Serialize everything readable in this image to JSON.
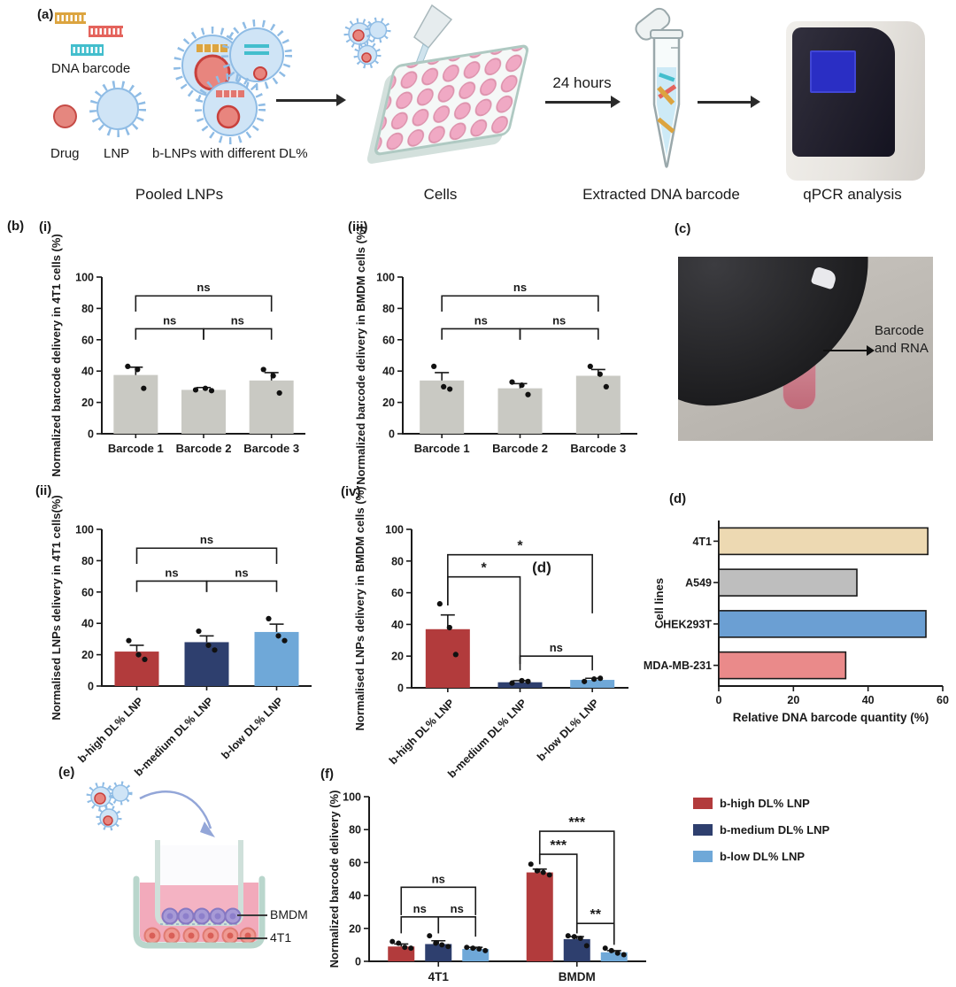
{
  "panels": {
    "a": "(a)",
    "b": "(b)",
    "b_i": "(i)",
    "b_ii": "(ii)",
    "b_iii": "(iii)",
    "b_iv": "(iv)",
    "c": "(c)",
    "d": "(d)",
    "e": "(e)",
    "f": "(f)"
  },
  "panel_a": {
    "dna_barcode_label": "DNA barcode",
    "drug_label": "Drug",
    "lnp_label": "LNP",
    "blnp_label": "b-LNPs with different DL%",
    "pooled_label": "Pooled LNPs",
    "cells_label": "Cells",
    "hours_label": "24 hours",
    "extracted_label": "Extracted DNA barcode",
    "qpcr_label": "qPCR analysis",
    "colors": {
      "barcode_gold": "#dca43f",
      "barcode_red": "#e4635c",
      "barcode_teal": "#43becd",
      "lnp_fill": "#cfe4f6",
      "lnp_stroke": "#8fbce5",
      "drug_fill": "#e5877f",
      "drug_stroke": "#c64b46"
    }
  },
  "panel_c": {
    "annotation_line1": "Barcode",
    "annotation_line2": "and RNA"
  },
  "panel_e": {
    "bmdm_label": "BMDM",
    "t4t1_label": "4T1"
  },
  "chart_data": [
    {
      "id": "b_i",
      "type": "bar",
      "ylabel": "Normalized barcode delivery in 4T1 cells (%)",
      "categories": [
        "Barcode 1",
        "Barcode 2",
        "Barcode 3"
      ],
      "values": [
        37.5,
        28,
        34
      ],
      "errors": [
        5,
        1.5,
        5
      ],
      "points": [
        [
          43,
          41,
          29
        ],
        [
          28,
          29,
          27.5
        ],
        [
          41,
          37,
          26
        ]
      ],
      "bar_color": "#c9c9c3",
      "ylim": [
        0,
        100
      ],
      "yticks": [
        0,
        20,
        40,
        60,
        80,
        100
      ],
      "brackets": [
        {
          "from": 0,
          "to": 2,
          "y": 88,
          "label": "ns",
          "arms": [
            10,
            10
          ]
        },
        {
          "from": 0,
          "to": 1,
          "y": 67,
          "label": "ns",
          "arms": [
            7,
            7
          ]
        },
        {
          "from": 1,
          "to": 2,
          "y": 67,
          "label": "ns",
          "arms": [
            7,
            7
          ]
        }
      ]
    },
    {
      "id": "b_iii",
      "type": "bar",
      "ylabel": "Normalized barcode delivery in BMDM cells (%)",
      "categories": [
        "Barcode 1",
        "Barcode 2",
        "Barcode 3"
      ],
      "values": [
        34,
        29,
        37
      ],
      "errors": [
        5,
        3,
        4
      ],
      "points": [
        [
          43,
          30,
          28.5
        ],
        [
          33,
          31,
          25
        ],
        [
          43,
          38,
          30
        ]
      ],
      "bar_color": "#c9c9c3",
      "ylim": [
        0,
        100
      ],
      "yticks": [
        0,
        20,
        40,
        60,
        80,
        100
      ],
      "brackets": [
        {
          "from": 0,
          "to": 2,
          "y": 88,
          "label": "ns",
          "arms": [
            10,
            10
          ]
        },
        {
          "from": 0,
          "to": 1,
          "y": 67,
          "label": "ns",
          "arms": [
            7,
            7
          ]
        },
        {
          "from": 1,
          "to": 2,
          "y": 67,
          "label": "ns",
          "arms": [
            7,
            7
          ]
        }
      ]
    },
    {
      "id": "b_ii",
      "type": "bar",
      "ylabel": "Normalised LNPs delivery in 4T1 cells(%)",
      "categories": [
        "b-high DL% LNP",
        "b-medium DL% LNP",
        "b-low DL% LNP"
      ],
      "values": [
        22,
        28,
        34.5
      ],
      "errors": [
        4,
        4,
        5
      ],
      "points": [
        [
          29,
          20,
          17
        ],
        [
          35,
          26,
          23
        ],
        [
          43,
          32,
          29
        ]
      ],
      "colors": [
        "#b23b3c",
        "#2e3f6e",
        "#6fa8d8"
      ],
      "ylim": [
        0,
        100
      ],
      "yticks": [
        0,
        20,
        40,
        60,
        80,
        100
      ],
      "brackets": [
        {
          "from": 0,
          "to": 2,
          "y": 88,
          "label": "ns",
          "arms": [
            10,
            10
          ]
        },
        {
          "from": 0,
          "to": 1,
          "y": 67,
          "label": "ns",
          "arms": [
            7,
            7
          ]
        },
        {
          "from": 1,
          "to": 2,
          "y": 67,
          "label": "ns",
          "arms": [
            7,
            7
          ]
        }
      ]
    },
    {
      "id": "b_iv",
      "type": "bar",
      "ylabel": "Normalised LNPs delivery in BMDM cells (%)",
      "categories": [
        "b-high DL% LNP",
        "b-medium DL% LNP",
        "b-low DL% LNP"
      ],
      "values": [
        37,
        3.5,
        5
      ],
      "errors": [
        9,
        1,
        1
      ],
      "points": [
        [
          53,
          38,
          21
        ],
        [
          3,
          4.5,
          4
        ],
        [
          4,
          5.5,
          6
        ]
      ],
      "colors": [
        "#b23b3c",
        "#2e3f6e",
        "#6fa8d8"
      ],
      "ylim": [
        0,
        100
      ],
      "yticks": [
        0,
        20,
        40,
        60,
        80,
        100
      ],
      "brackets": [
        {
          "from": 0,
          "to": 2,
          "y": 84,
          "label": "*",
          "arms": [
            32,
            37
          ]
        },
        {
          "from": 0,
          "to": 1,
          "y": 70,
          "label": "*",
          "arms": [
            18,
            55
          ]
        },
        {
          "from": 1,
          "to": 2,
          "y": 20,
          "label": "ns",
          "arms": [
            9,
            9
          ]
        }
      ],
      "annotation": {
        "text": "(d)",
        "fx": 0.6,
        "y": 73
      }
    },
    {
      "id": "d",
      "type": "hbar",
      "xlabel": "Relative DNA barcode quantity (%)",
      "ylabel": "Cell lines",
      "categories": [
        "4T1",
        "A549",
        "HEK293T",
        "MDA-MB-231"
      ],
      "values": [
        56,
        37,
        55.5,
        34
      ],
      "colors": [
        "#edd9b2",
        "#bebebe",
        "#6b9fd3",
        "#ea8a8a"
      ],
      "xlim": [
        0,
        60
      ],
      "xticks": [
        0,
        20,
        40,
        60
      ]
    },
    {
      "id": "f",
      "type": "grouped_bar",
      "ylabel": "Normalized barcode delivery (%)",
      "groups": [
        "4T1",
        "BMDM"
      ],
      "series": [
        {
          "name": "b-high DL% LNP",
          "color": "#b23b3c",
          "values": [
            9,
            54
          ]
        },
        {
          "name": "b-medium DL% LNP",
          "color": "#2e3f6e",
          "values": [
            10.5,
            13.5
          ]
        },
        {
          "name": "b-low DL% LNP",
          "color": "#6fa8d8",
          "values": [
            7.5,
            5.5
          ]
        }
      ],
      "errors": [
        1.5,
        2,
        1,
        2,
        1.5,
        1
      ],
      "points": [
        [
          12,
          11,
          8.5,
          8
        ],
        [
          15.5,
          11,
          10,
          9
        ],
        [
          8.5,
          8,
          7.5,
          6.5
        ],
        [
          59,
          55,
          54,
          52.5
        ],
        [
          15.5,
          15,
          14,
          9.5
        ],
        [
          8,
          6.5,
          5,
          4
        ]
      ],
      "ylim": [
        0,
        100
      ],
      "yticks": [
        0,
        20,
        40,
        60,
        80,
        100
      ],
      "brackets": [
        {
          "from": 0,
          "to": 2,
          "y": 45,
          "label": "ns",
          "arms": [
            17,
            17
          ]
        },
        {
          "from": 0,
          "to": 1,
          "y": 27,
          "label": "ns",
          "arms": [
            10,
            10
          ]
        },
        {
          "from": 1,
          "to": 2,
          "y": 27,
          "label": "ns",
          "arms": [
            10,
            12
          ]
        },
        {
          "from": 3,
          "to": 5,
          "y": 79,
          "label": "***",
          "arms": [
            20,
            67
          ]
        },
        {
          "from": 3,
          "to": 4,
          "y": 65,
          "label": "***",
          "arms": [
            6,
            48
          ]
        },
        {
          "from": 4,
          "to": 5,
          "y": 23,
          "label": "**",
          "arms": [
            6,
            13
          ]
        }
      ]
    }
  ]
}
